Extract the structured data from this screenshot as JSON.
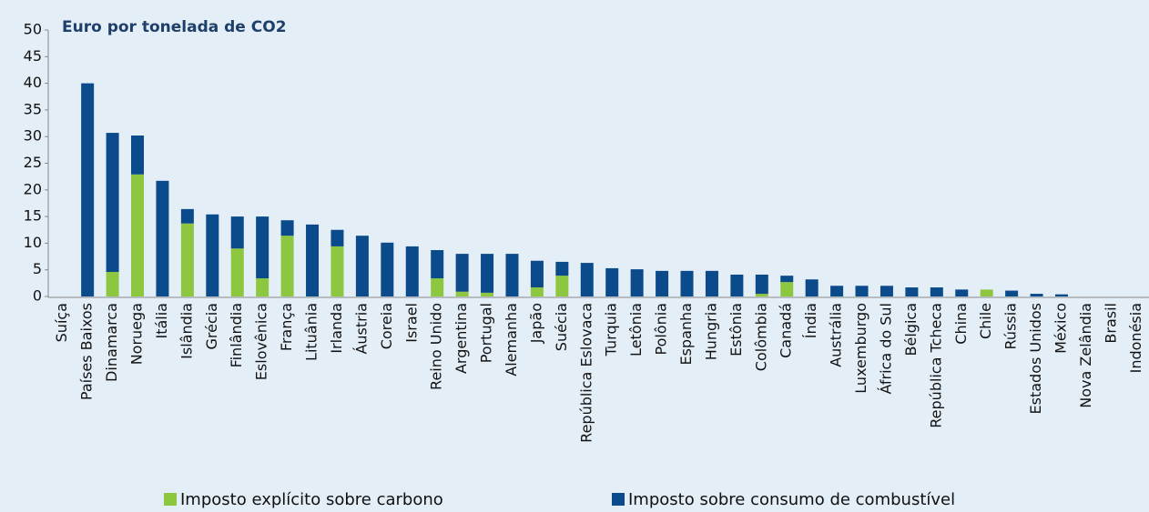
{
  "chart_data": {
    "type": "stacked-bar",
    "title": "Euro por tonelada de CO2",
    "categories": [
      "Suíça",
      "Países Baixos",
      "Dinamarca",
      "Noruega",
      "Itália",
      "Islândia",
      "Grécia",
      "Finlândia",
      "Eslovênica",
      "França",
      "Lituânia",
      "Irlanda",
      "Áustria",
      "Coreia",
      "Israel",
      "Reino Unido",
      "Argentina",
      "Portugal",
      "Alemanha",
      "Japão",
      "Suécia",
      "República Eslovaca",
      "Turquia",
      "Letônia",
      "Polônia",
      "Espanha",
      "Hungria",
      "Estônia",
      "Colômbia",
      "Canadá",
      "Índia",
      "Austrália",
      "Luxemburgo",
      "África do Sul",
      "Bélgica",
      "República Tcheca",
      "China",
      "Chile",
      "Rússia",
      "Estados Unidos",
      "México",
      "Nova Zelândia",
      "Brasil",
      "Indonésia"
    ],
    "series": [
      {
        "name": "Imposto explícito sobre carbono",
        "color": "#8dc63f",
        "values": [
          0,
          0,
          4.6,
          22.9,
          0,
          13.7,
          0,
          9.0,
          3.4,
          11.4,
          0,
          9.4,
          0,
          0,
          0,
          3.4,
          0.9,
          0.7,
          0,
          1.7,
          3.9,
          0,
          0,
          0,
          0,
          0,
          0,
          0,
          0.5,
          2.7,
          0,
          0,
          0,
          0,
          0,
          0,
          0,
          1.3,
          0,
          0,
          0,
          0,
          0,
          0
        ]
      },
      {
        "name": "Imposto sobre consumo de combustível",
        "color": "#0b4a8b",
        "values": [
          0,
          40.0,
          26.1,
          7.3,
          21.7,
          2.7,
          15.4,
          6.0,
          11.6,
          2.9,
          13.5,
          3.1,
          11.4,
          10.1,
          9.4,
          5.3,
          7.1,
          7.3,
          8.0,
          5.0,
          2.6,
          6.3,
          5.3,
          5.1,
          4.8,
          4.8,
          4.8,
          4.1,
          3.6,
          1.2,
          3.2,
          2.0,
          2.0,
          2.0,
          1.7,
          1.7,
          1.3,
          0,
          1.1,
          0.5,
          0.4,
          0,
          0,
          0
        ]
      }
    ],
    "ylim": [
      0,
      50
    ],
    "yticks": [
      0,
      5,
      10,
      15,
      20,
      25,
      30,
      35,
      40,
      45,
      50
    ]
  }
}
